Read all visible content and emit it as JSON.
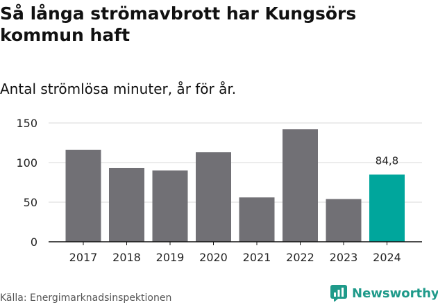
{
  "header": {
    "title": "Så långa strömavbrott har Kungsörs kommun haft",
    "subtitle": "Antal strömlösa minuter, år för år."
  },
  "footer": {
    "source": "Källa: Energimarknadsinspektionen",
    "brand": "Newsworthy",
    "brand_icon": "newsworthy-logo-icon"
  },
  "colors": {
    "bar_default": "#717075",
    "bar_highlight": "#00a69c",
    "grid": "#d9d9d9",
    "axis": "#111111",
    "brand": "#1f9a8a"
  },
  "chart_data": {
    "type": "bar",
    "title": "Så långa strömavbrott har Kungsörs kommun haft",
    "subtitle": "Antal strömlösa minuter, år för år.",
    "xlabel": "",
    "ylabel": "",
    "categories": [
      "2017",
      "2018",
      "2019",
      "2020",
      "2021",
      "2022",
      "2023",
      "2024"
    ],
    "values": [
      116,
      93,
      90,
      113,
      56,
      142,
      54,
      84.8
    ],
    "ylim": [
      0,
      150
    ],
    "yticks": [
      0,
      50,
      100,
      150
    ],
    "grid": true,
    "highlight_index": 7,
    "annotations": [
      {
        "category": "2024",
        "text": "84,8"
      }
    ]
  }
}
